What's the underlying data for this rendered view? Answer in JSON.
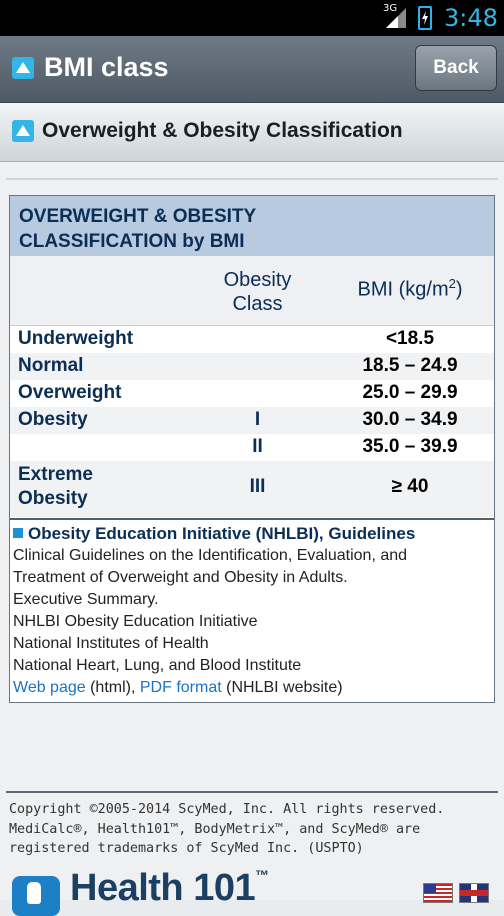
{
  "status_bar": {
    "network": "3G",
    "time": "3:48"
  },
  "app_bar": {
    "title": "BMI class",
    "back_label": "Back"
  },
  "section": {
    "title": "Overweight & Obesity Classification"
  },
  "table": {
    "title_line1": "OVERWEIGHT & OBESITY",
    "title_line2": "CLASSIFICATION by BMI",
    "col_obesity_line1": "Obesity",
    "col_obesity_line2": "Class",
    "col_bmi": "BMI (kg/m",
    "col_bmi_sup": "2",
    "col_bmi_end": ")",
    "rows": [
      {
        "category": "Underweight",
        "class": "",
        "bmi": "<18.5"
      },
      {
        "category": "Normal",
        "class": "",
        "bmi": "18.5 – 24.9"
      },
      {
        "category": "Overweight",
        "class": "",
        "bmi": "25.0 – 29.9"
      },
      {
        "category": "Obesity",
        "class": "I",
        "bmi": "30.0 – 34.9"
      },
      {
        "category": "",
        "class": "II",
        "bmi": "35.0 – 39.9"
      },
      {
        "category_line1": "Extreme",
        "category_line2": "Obesity",
        "class": "III",
        "bmi": "≥ 40"
      }
    ]
  },
  "reference": {
    "title": "Obesity Education Initiative (NHLBI), Guidelines",
    "line1": "Clinical Guidelines on the Identification, Evaluation, and",
    "line2": "Treatment of Overweight and Obesity in Adults.",
    "line3": "Executive Summary.",
    "line4": "NHLBI Obesity Education Initiative",
    "line5": "National Institutes of Health",
    "line6": "National Heart, Lung, and Blood Institute",
    "link_web": "Web page",
    "text_html": " (html), ",
    "link_pdf": "PDF format",
    "text_site": " (NHLBI website)"
  },
  "footer": {
    "copyright_line1": "Copyright ©2005-2014 ScyMed, Inc. All rights reserved.",
    "copyright_line2": "MediCalc®, Health101™, BodyMetrix™, and ScyMed® are",
    "copyright_line3": "registered trademarks of ScyMed Inc. (USPTO)",
    "logo_text": "Health 101",
    "logo_tm": "™"
  },
  "colors": {
    "accent": "#33b5e5",
    "header_blue": "#b7cadf",
    "link": "#1a73c7"
  },
  "icons": [
    "signal-icon",
    "battery-icon",
    "triangle-up-icon",
    "health101-logo-icon",
    "us-flag-icon",
    "uk-flag-icon"
  ]
}
